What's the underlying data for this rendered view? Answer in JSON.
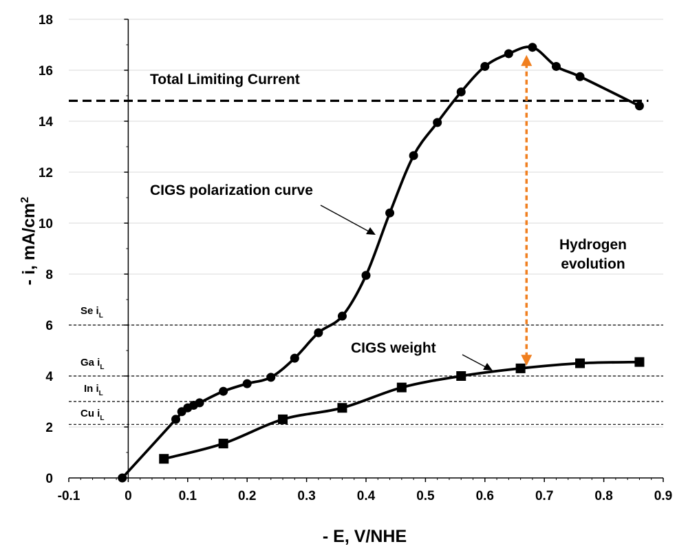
{
  "chart_data": {
    "type": "line",
    "xlabel": "- E, V/NHE",
    "ylabel": "- i, mA/cm",
    "ylabel_superscript": "2",
    "xlim": [
      -0.1,
      0.9
    ],
    "ylim": [
      0,
      18
    ],
    "x_ticks": [
      "-0.1",
      "0",
      "0.1",
      "0.2",
      "0.3",
      "0.4",
      "0.5",
      "0.6",
      "0.7",
      "0.8",
      "0.9"
    ],
    "y_ticks": [
      "0",
      "2",
      "4",
      "6",
      "8",
      "10",
      "12",
      "14",
      "16",
      "18"
    ],
    "grid": "horizontal",
    "series": [
      {
        "name": "CIGS polarization curve",
        "marker": "circle",
        "points": [
          [
            -0.01,
            0.0
          ],
          [
            0.08,
            2.3
          ],
          [
            0.09,
            2.6
          ],
          [
            0.1,
            2.75
          ],
          [
            0.11,
            2.85
          ],
          [
            0.12,
            2.95
          ],
          [
            0.16,
            3.4
          ],
          [
            0.2,
            3.7
          ],
          [
            0.24,
            3.95
          ],
          [
            0.28,
            4.7
          ],
          [
            0.32,
            5.7
          ],
          [
            0.36,
            6.35
          ],
          [
            0.4,
            7.95
          ],
          [
            0.44,
            10.4
          ],
          [
            0.48,
            12.65
          ],
          [
            0.52,
            13.95
          ],
          [
            0.56,
            15.15
          ],
          [
            0.6,
            16.15
          ],
          [
            0.64,
            16.65
          ],
          [
            0.68,
            16.9
          ],
          [
            0.72,
            16.15
          ],
          [
            0.76,
            15.75
          ],
          [
            0.86,
            14.6
          ]
        ]
      },
      {
        "name": "CIGS weight",
        "marker": "square",
        "points": [
          [
            0.06,
            0.75
          ],
          [
            0.16,
            1.35
          ],
          [
            0.26,
            2.3
          ],
          [
            0.36,
            2.75
          ],
          [
            0.46,
            3.55
          ],
          [
            0.56,
            4.0
          ],
          [
            0.66,
            4.3
          ],
          [
            0.76,
            4.5
          ],
          [
            0.86,
            4.55
          ]
        ]
      }
    ],
    "reference_lines": [
      {
        "name": "Total Limiting Current",
        "y": 14.8,
        "style": "thick-dash",
        "label": "Total Limiting Current"
      },
      {
        "name": "Se",
        "y": 6.0,
        "style": "thin-dash",
        "label": "Se i",
        "sub": "L"
      },
      {
        "name": "Ga",
        "y": 4.0,
        "style": "thin-dash",
        "label": "Ga i",
        "sub": "L"
      },
      {
        "name": "In",
        "y": 3.0,
        "style": "thin-dash",
        "label": "In i",
        "sub": "L"
      },
      {
        "name": "Cu",
        "y": 2.1,
        "style": "thin-dash",
        "label": "Cu i",
        "sub": "L"
      }
    ],
    "annotations": [
      {
        "name": "polarization",
        "text": "CIGS polarization curve"
      },
      {
        "name": "weight",
        "text": "CIGS weight"
      },
      {
        "name": "hydrogen_line1",
        "text": "Hydrogen"
      },
      {
        "name": "hydrogen_line2",
        "text": "evolution"
      }
    ],
    "hydrogen_arrow": {
      "x": 0.67,
      "y_from": 4.4,
      "y_to": 16.6,
      "color": "#f07f1f"
    }
  }
}
